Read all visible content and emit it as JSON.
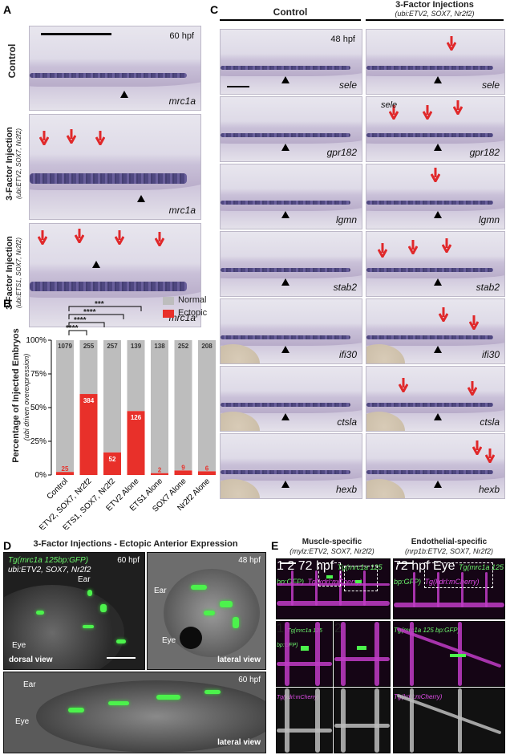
{
  "panelA": {
    "letter": "A",
    "time": "60 hpf",
    "marker": "mrc1a",
    "row_labels": [
      "Control",
      "3-Factor Injection",
      "3-Factor Injection"
    ],
    "row_sublabels": [
      "",
      "(ubi:ETV2, SOX7, Nr2f2)",
      "(ubi:ETS1, SOX7, Nr2f2)"
    ]
  },
  "panelB": {
    "letter": "B",
    "sig": [
      "****",
      "****",
      "****",
      "***"
    ]
  },
  "chart_data": {
    "type": "bar",
    "stacked": true,
    "ylabel": "Percentage of Injected Embryos",
    "ylabel_sub": "(ubi driven overexpression)",
    "ylim": [
      0,
      100
    ],
    "yticks": [
      "0%",
      "25%",
      "50%",
      "75%",
      "100%"
    ],
    "categories": [
      "Control",
      "ETV2, SOX7, Nr2f2",
      "ETS1, SOX7, Nr2f2",
      "ETV2 Alone",
      "ETS1 Alone",
      "SOX7 Alone",
      "Nr2f2 Alone"
    ],
    "series": [
      {
        "name": "Ectopic",
        "color": "#e8302a",
        "values": [
          2.3,
          60.1,
          16.8,
          47.5,
          1.4,
          3.4,
          2.8
        ],
        "labels": [
          "25",
          "384",
          "52",
          "126",
          "2",
          "9",
          "6"
        ]
      },
      {
        "name": "Normal",
        "color": "#bdbdbd",
        "values": [
          97.7,
          39.9,
          83.2,
          52.5,
          98.6,
          96.6,
          97.2
        ],
        "labels": [
          "1079",
          "255",
          "257",
          "139",
          "138",
          "252",
          "208"
        ]
      }
    ],
    "legend_position": "top-right"
  },
  "panelC": {
    "letter": "C",
    "col_control": "Control",
    "col_inj_title": "3-Factor Injections",
    "col_inj_sub": "(ubi:ETV2, SOX7, Nr2f2)",
    "time": "48 hpf",
    "genes": [
      "sele",
      "gpr182",
      "lgmn",
      "stab2",
      "ifi30",
      "ctsla",
      "hexb"
    ],
    "sele_annot": "sele"
  },
  "panelD": {
    "letter": "D",
    "title": "3-Factor Injections - Ectopic Anterior Expression",
    "transgene": "Tg(mrc1a 125bp:GFP)",
    "injection": "ubi:ETV2, SOX7, Nr2f2",
    "t1": "60 hpf",
    "t2": "48 hpf",
    "t3": "60 hpf",
    "ear": "Ear",
    "eye": "Eye",
    "v1": "dorsal view",
    "v2": "lateral view",
    "v3": "lateral view"
  },
  "panelE": {
    "letter": "E",
    "muscle_title": "Muscle-specific",
    "muscle_sub": "(mylz:ETV2, SOX7, Nr2f2)",
    "endo_title": "Endothelial-specific",
    "endo_sub": "(nrp1b:ETV2, SOX7, Nr2f2)",
    "time": "72 hpf",
    "eye": "Eye",
    "tg_green": "Tg(mrc1a 125 bp:GFP)",
    "tg_mag": "Tg(kdrl:mCherry)",
    "box1": "1",
    "box2": "2"
  }
}
